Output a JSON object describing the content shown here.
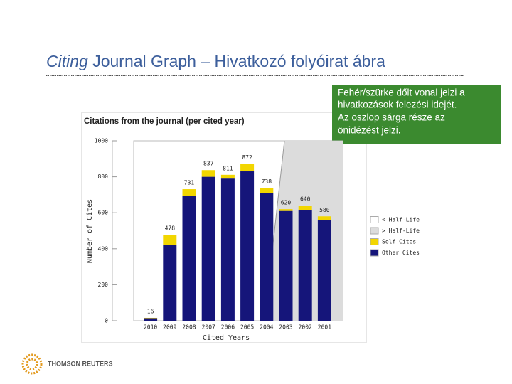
{
  "slide": {
    "title_italic": "Citing",
    "title_rest": "Journal Graph – Hivatkozó folyóirat ábra",
    "note_lines": [
      "Fehér/szürke dőlt vonal jelzi a",
      "hivatkozások felezési idejét.",
      "Az oszlop sárga része az",
      "önidézést jelzi."
    ],
    "logo": "THOMSON REUTERS"
  },
  "chart_data": {
    "type": "stacked_bar",
    "title": "Citations from the journal (per cited year)",
    "x_label": "Cited Years",
    "y_label": "Number of Cites",
    "categories": [
      "2010",
      "2009",
      "2008",
      "2007",
      "2006",
      "2005",
      "2004",
      "2003",
      "2002",
      "2001"
    ],
    "series": [
      {
        "name": "Other Cites",
        "color": "#15157a",
        "values": [
          14,
          420,
          695,
          800,
          790,
          830,
          710,
          610,
          615,
          560
        ]
      },
      {
        "name": "Self Cites",
        "color": "#f2d600",
        "values": [
          2,
          58,
          36,
          37,
          21,
          42,
          28,
          10,
          25,
          20
        ]
      }
    ],
    "totals": [
      16,
      478,
      731,
      837,
      811,
      872,
      738,
      620,
      640,
      580
    ],
    "background_legend": [
      {
        "name": "< Half-Life",
        "color": "#ffffff"
      },
      {
        "name": "> Half-Life",
        "color": "#dcdcdc"
      }
    ],
    "ylim": [
      0,
      1000
    ],
    "yticks": [
      0,
      200,
      400,
      600,
      800,
      1000
    ],
    "grid": false
  }
}
